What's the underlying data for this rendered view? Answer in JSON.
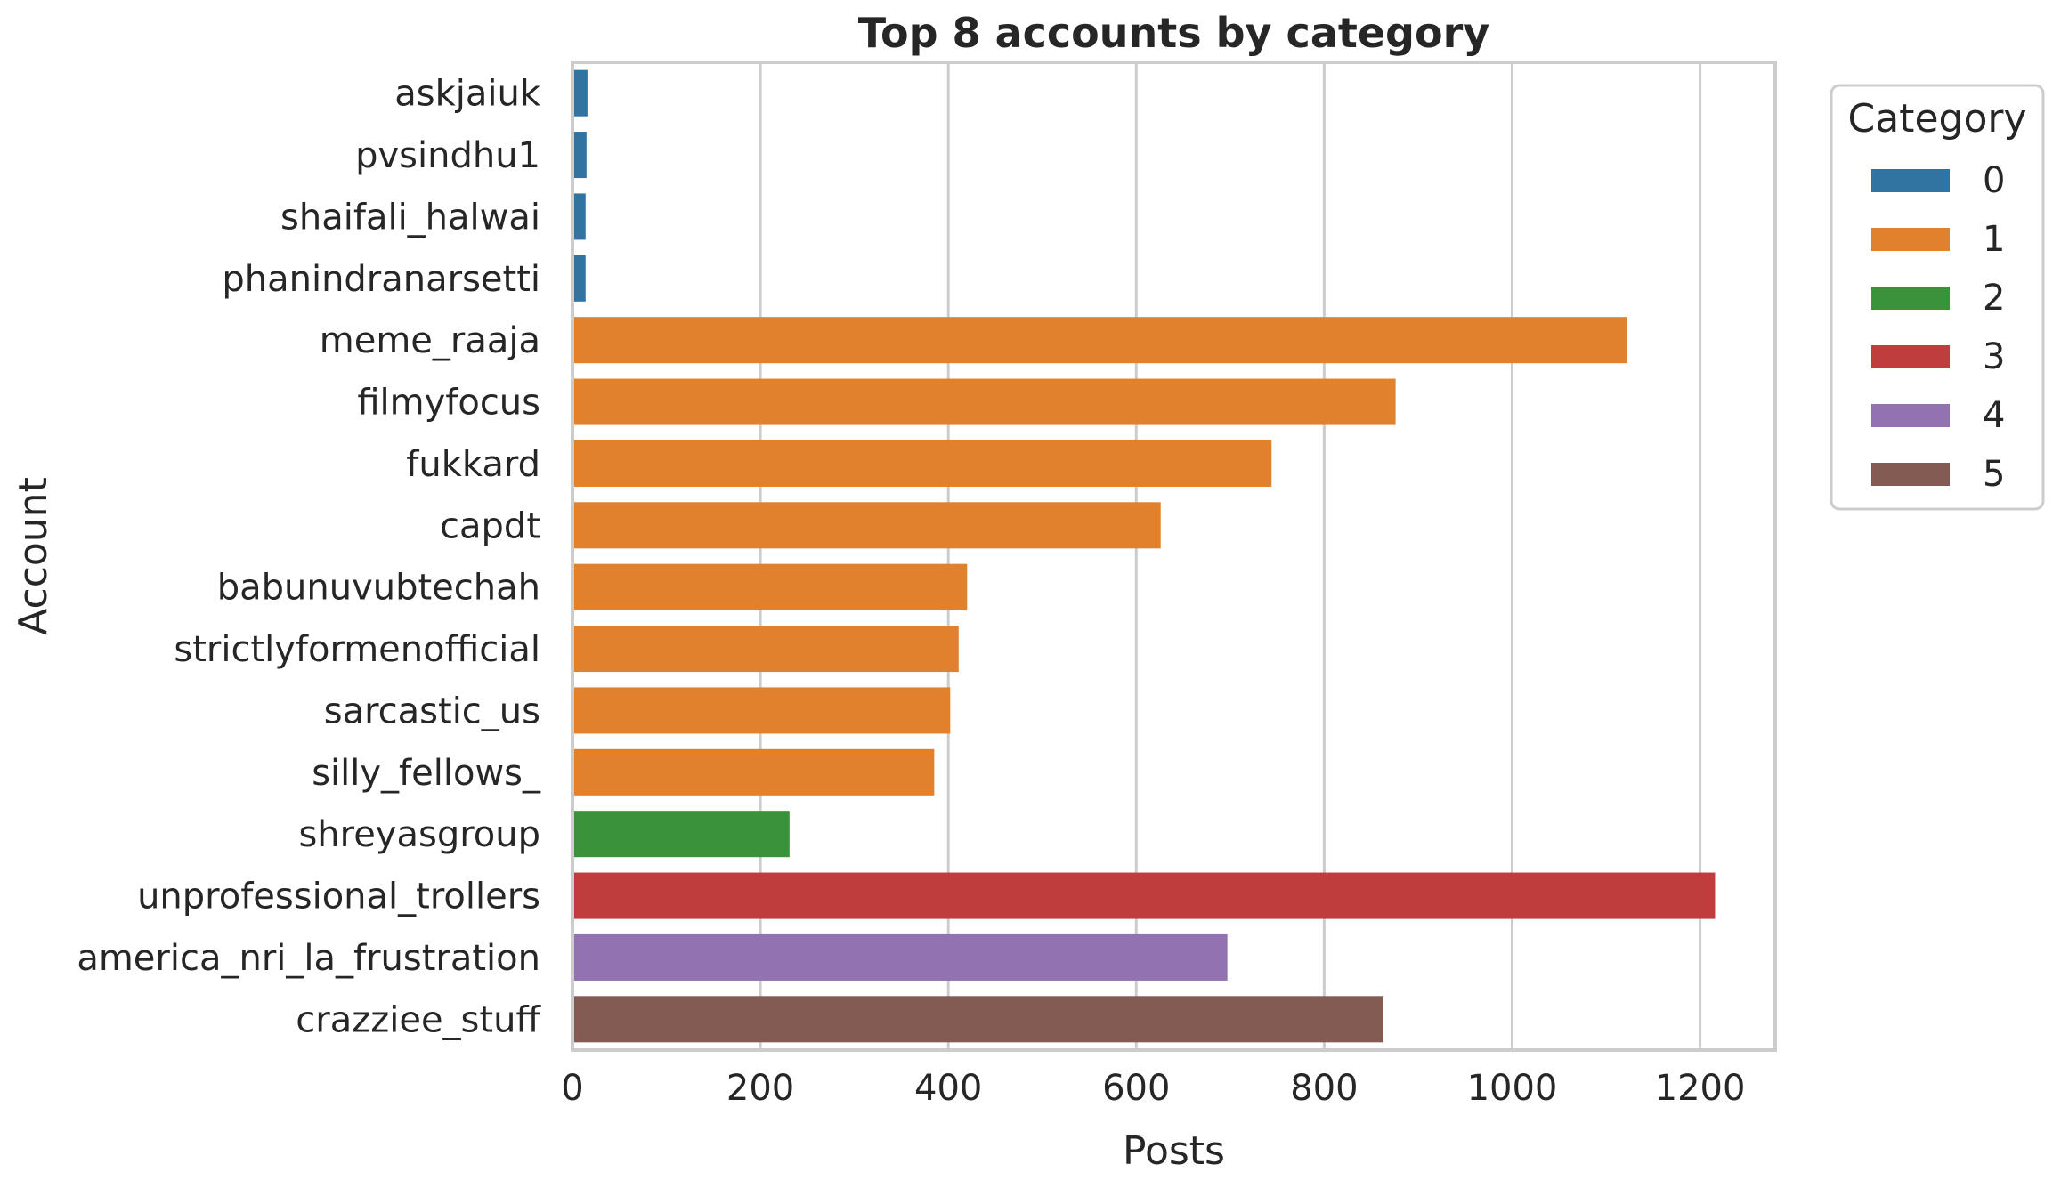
{
  "chart_data": {
    "type": "bar",
    "orientation": "horizontal",
    "title": "Top 8 accounts by category",
    "xlabel": "Posts",
    "ylabel": "Account",
    "xlim": [
      0,
      1280
    ],
    "xticks": [
      0,
      200,
      400,
      600,
      800,
      1000,
      1200
    ],
    "grid": true,
    "legend": {
      "title": "Category",
      "placement": "outside-right-top",
      "entries": [
        {
          "label": "0",
          "color": "#3274a1"
        },
        {
          "label": "1",
          "color": "#e1812c"
        },
        {
          "label": "2",
          "color": "#3a923a"
        },
        {
          "label": "3",
          "color": "#c03d3e"
        },
        {
          "label": "4",
          "color": "#9372b2"
        },
        {
          "label": "5",
          "color": "#845b53"
        }
      ]
    },
    "bars": [
      {
        "account": "askjaiuk",
        "category": "0",
        "value": 16
      },
      {
        "account": "pvsindhu1",
        "category": "0",
        "value": 15
      },
      {
        "account": "shaifali_halwai",
        "category": "0",
        "value": 14
      },
      {
        "account": "phanindranarsetti",
        "category": "0",
        "value": 14
      },
      {
        "account": "meme_raaja",
        "category": "1",
        "value": 1122
      },
      {
        "account": "filmyfocus",
        "category": "1",
        "value": 876
      },
      {
        "account": "fukkard",
        "category": "1",
        "value": 744
      },
      {
        "account": "capdt",
        "category": "1",
        "value": 626
      },
      {
        "account": "babunuvubtechah",
        "category": "1",
        "value": 420
      },
      {
        "account": "strictlyformenofficial",
        "category": "1",
        "value": 411
      },
      {
        "account": "sarcastic_us",
        "category": "1",
        "value": 402
      },
      {
        "account": "silly_fellows_",
        "category": "1",
        "value": 385
      },
      {
        "account": "shreyasgroup",
        "category": "2",
        "value": 231
      },
      {
        "account": "unprofessional_trollers",
        "category": "3",
        "value": 1216
      },
      {
        "account": "america_nri_la_frustration",
        "category": "4",
        "value": 697
      },
      {
        "account": "crazziee_stuff",
        "category": "5",
        "value": 863
      }
    ]
  }
}
